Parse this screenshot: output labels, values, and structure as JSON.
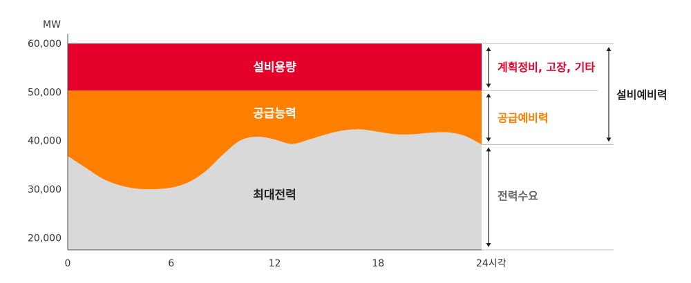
{
  "chart_data": {
    "type": "area",
    "title": "",
    "xlabel": "시각",
    "ylabel": "MW",
    "xlim": [
      0,
      24
    ],
    "ylim": [
      17500,
      60000
    ],
    "x_ticks": [
      {
        "value": 0,
        "label": "0"
      },
      {
        "value": 6,
        "label": "6"
      },
      {
        "value": 12,
        "label": "12"
      },
      {
        "value": 18,
        "label": "18"
      },
      {
        "value": 24,
        "label": "24시각"
      }
    ],
    "y_ticks": [
      {
        "value": 20000,
        "label": "20,000"
      },
      {
        "value": 30000,
        "label": "30,000"
      },
      {
        "value": 40000,
        "label": "40,000"
      },
      {
        "value": 50000,
        "label": "50,000"
      },
      {
        "value": 60000,
        "label": "60,000"
      }
    ],
    "series": [
      {
        "name": "설비용량",
        "color": "#e4002b",
        "type": "band",
        "lower": 50300,
        "upper": 60000
      },
      {
        "name": "공급능력",
        "color": "#ff7f00",
        "type": "band",
        "lower_series": "최대전력",
        "upper": 50300
      },
      {
        "name": "최대전력",
        "color": "#d9d9d9",
        "x": [
          0,
          1,
          2,
          3,
          4,
          5,
          6,
          7,
          8,
          9,
          10,
          11,
          12,
          13,
          14,
          15,
          16,
          17,
          18,
          19,
          20,
          21,
          22,
          23,
          24
        ],
        "values": [
          36800,
          34500,
          32200,
          30800,
          30100,
          30000,
          30300,
          31400,
          33700,
          37100,
          40000,
          40800,
          40200,
          39300,
          40200,
          41300,
          42100,
          42300,
          41800,
          41300,
          41300,
          41600,
          41700,
          41000,
          39200
        ]
      }
    ],
    "annotations": [
      {
        "text": "계획정비, 고장, 기타",
        "color": "#e4002b",
        "from": 50300,
        "to": 60000
      },
      {
        "text": "공급예비력",
        "color": "#ff7f00",
        "from": 39200,
        "to": 50300
      },
      {
        "text": "전력수요",
        "color": "#666666",
        "from": 17500,
        "to": 39200
      },
      {
        "text": "설비예비력",
        "color": "#222222",
        "from": 39200,
        "to": 60000
      }
    ]
  }
}
